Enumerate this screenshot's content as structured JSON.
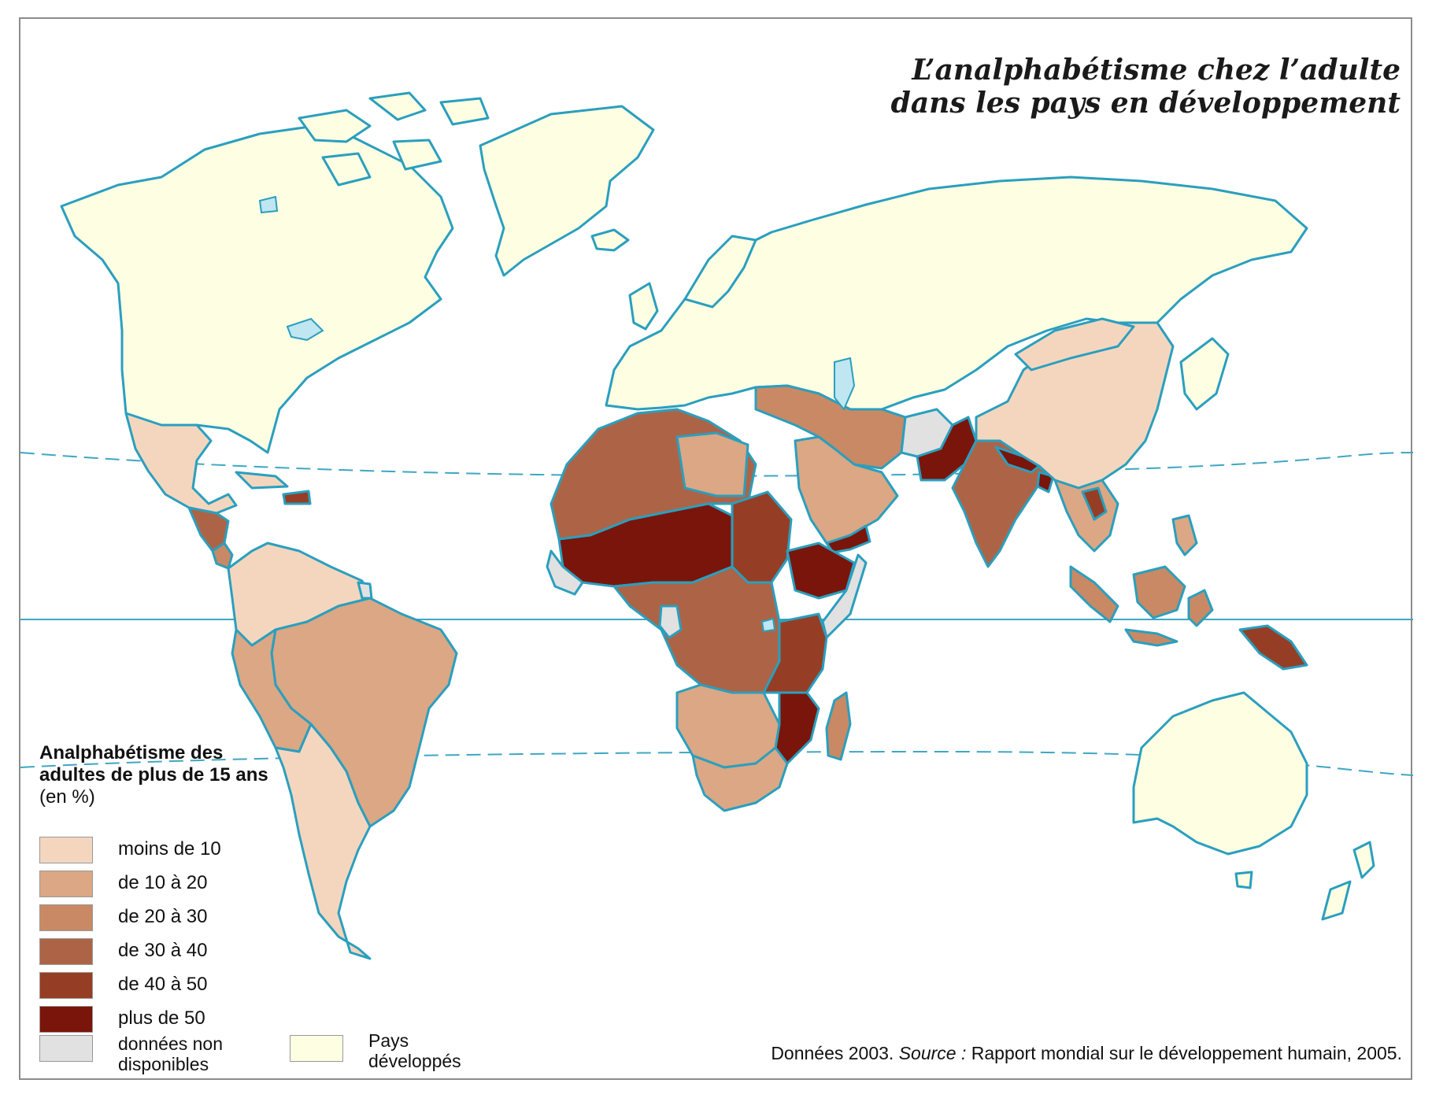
{
  "title": {
    "line1": "L’analphabétisme chez l’adulte",
    "line2": "dans les pays en développement"
  },
  "legend": {
    "title": "Analphabétisme des adultes de plus de 15 ans",
    "unit": "(en %)",
    "classes": [
      {
        "label": "moins de 10",
        "color": "#f4d6bf"
      },
      {
        "label": "de 10 à 20",
        "color": "#dba784"
      },
      {
        "label": "de 20 à 30",
        "color": "#c98964"
      },
      {
        "label": "de 30 à 40",
        "color": "#ad6446"
      },
      {
        "label": "de 40 à 50",
        "color": "#953e25"
      },
      {
        "label": "plus de 50",
        "color": "#7a150b"
      }
    ],
    "no_data": {
      "label": "données non disponibles",
      "color": "#e1e1e1"
    },
    "developed": {
      "label": "Pays développés",
      "color": "#fefee3"
    }
  },
  "source": {
    "prefix": "Données 2003.",
    "label": "Source :",
    "text": "Rapport mondial sur le développement humain, 2005."
  },
  "colors": {
    "coast": "#2a9fbe",
    "water": "#bfe6f1",
    "border": "#ffffff",
    "lines": "#3ea7c2"
  }
}
